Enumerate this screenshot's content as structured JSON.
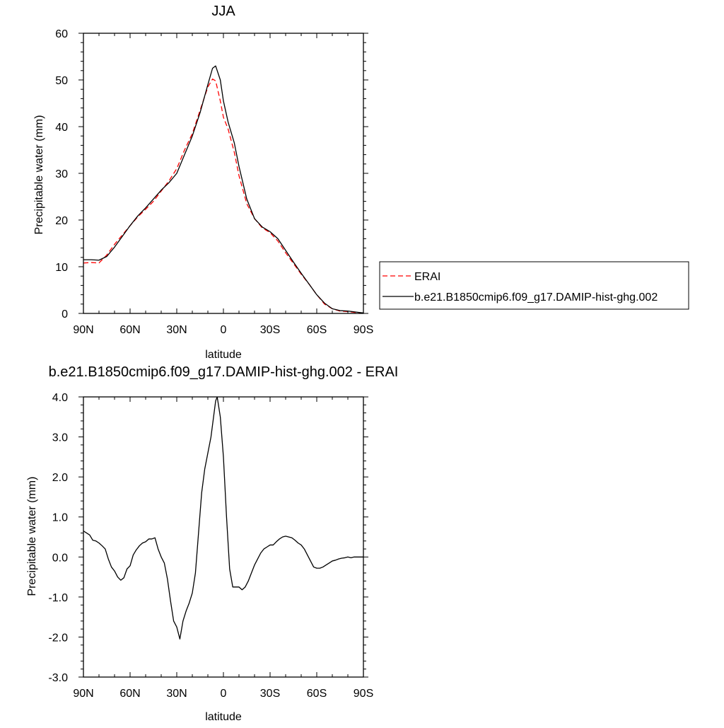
{
  "chart_data": [
    {
      "type": "line",
      "title": "JJA",
      "xlabel": "latitude",
      "ylabel": "Precipitable water (mm)",
      "xlim": [
        90,
        -90
      ],
      "ylim": [
        0,
        60
      ],
      "x_ticks": [
        {
          "value": 90,
          "label": "90N"
        },
        {
          "value": 60,
          "label": "60N"
        },
        {
          "value": 30,
          "label": "30N"
        },
        {
          "value": 0,
          "label": "0"
        },
        {
          "value": -30,
          "label": "30S"
        },
        {
          "value": -60,
          "label": "60S"
        },
        {
          "value": -90,
          "label": "90S"
        }
      ],
      "y_ticks": [
        {
          "value": 0,
          "label": "0"
        },
        {
          "value": 10,
          "label": "10"
        },
        {
          "value": 20,
          "label": "20"
        },
        {
          "value": 30,
          "label": "30"
        },
        {
          "value": 40,
          "label": "40"
        },
        {
          "value": 50,
          "label": "50"
        },
        {
          "value": 60,
          "label": "60"
        }
      ],
      "legend_position": "right",
      "series": [
        {
          "name": "ERAI",
          "color": "#ff0000",
          "style": "dashed",
          "x": [
            90,
            85,
            80,
            75,
            70,
            65,
            60,
            55,
            50,
            45,
            40,
            35,
            30,
            25,
            20,
            15,
            10,
            7,
            5,
            2,
            0,
            -3,
            -7,
            -10,
            -15,
            -20,
            -25,
            -30,
            -35,
            -40,
            -45,
            -50,
            -55,
            -60,
            -65,
            -70,
            -75,
            -80,
            -85,
            -90
          ],
          "y": [
            10.8,
            10.9,
            10.8,
            12.5,
            14.8,
            16.8,
            18.8,
            20.7,
            22.3,
            24.0,
            26.2,
            28.4,
            31.0,
            35.0,
            38.5,
            43.5,
            48.5,
            50.2,
            49.8,
            45.5,
            42.0,
            39.5,
            34.5,
            29.5,
            23.5,
            20.3,
            18.3,
            17.3,
            15.5,
            13.0,
            10.7,
            8.4,
            6.3,
            4.0,
            2.0,
            1.0,
            0.5,
            0.4,
            0.2,
            0.1
          ]
        },
        {
          "name": "b.e21.B1850cmip6.f09_g17.DAMIP-hist-ghg.002",
          "color": "#000000",
          "style": "solid",
          "x": [
            90,
            85,
            80,
            75,
            70,
            65,
            60,
            55,
            50,
            45,
            40,
            35,
            30,
            25,
            20,
            15,
            10,
            7,
            5,
            2,
            0,
            -3,
            -7,
            -10,
            -15,
            -20,
            -25,
            -30,
            -35,
            -40,
            -45,
            -50,
            -55,
            -60,
            -65,
            -70,
            -75,
            -80,
            -85,
            -90
          ],
          "y": [
            11.5,
            11.5,
            11.4,
            12.2,
            14.2,
            16.5,
            18.8,
            20.9,
            22.6,
            24.5,
            26.4,
            28.0,
            30.0,
            34.0,
            38.0,
            43.0,
            49.0,
            52.5,
            53.0,
            50.0,
            45.5,
            41.0,
            36.5,
            31.5,
            24.5,
            20.3,
            18.5,
            17.5,
            16.0,
            13.5,
            11.0,
            8.6,
            6.3,
            4.0,
            2.2,
            1.0,
            0.6,
            0.5,
            0.3,
            0.1
          ]
        }
      ]
    },
    {
      "type": "line",
      "title": "b.e21.B1850cmip6.f09_g17.DAMIP-hist-ghg.002 - ERAI",
      "xlabel": "latitude",
      "ylabel": "Precipitable water (mm)",
      "xlim": [
        90,
        -90
      ],
      "ylim": [
        -3,
        4
      ],
      "x_ticks": [
        {
          "value": 90,
          "label": "90N"
        },
        {
          "value": 60,
          "label": "60N"
        },
        {
          "value": 30,
          "label": "30N"
        },
        {
          "value": 0,
          "label": "0"
        },
        {
          "value": -30,
          "label": "30S"
        },
        {
          "value": -60,
          "label": "60S"
        },
        {
          "value": -90,
          "label": "90S"
        }
      ],
      "y_ticks": [
        {
          "value": 4,
          "label": "4.0"
        },
        {
          "value": 3,
          "label": "3.0"
        },
        {
          "value": 2,
          "label": "2.0"
        },
        {
          "value": 1,
          "label": "1.0"
        },
        {
          "value": 0,
          "label": "0.0"
        },
        {
          "value": -1,
          "label": "-1.0"
        },
        {
          "value": -2,
          "label": "-2.0"
        },
        {
          "value": -3,
          "label": "-3.0"
        }
      ],
      "series": [
        {
          "color": "#000000",
          "style": "solid",
          "x": [
            90,
            88,
            86,
            84,
            82,
            80,
            78,
            76,
            74,
            72,
            70,
            68,
            66,
            64,
            62,
            60,
            58,
            56,
            54,
            52,
            50,
            48,
            46,
            44,
            42,
            40,
            38,
            36,
            34,
            32,
            30,
            28,
            26,
            24,
            22,
            20,
            18,
            16,
            14,
            12,
            10,
            8,
            6,
            5,
            4,
            2,
            0,
            -2,
            -4,
            -6,
            -8,
            -10,
            -12,
            -14,
            -16,
            -18,
            -20,
            -22,
            -24,
            -26,
            -28,
            -30,
            -32,
            -34,
            -36,
            -38,
            -40,
            -42,
            -44,
            -46,
            -48,
            -50,
            -52,
            -54,
            -56,
            -58,
            -60,
            -62,
            -64,
            -66,
            -68,
            -70,
            -72,
            -74,
            -76,
            -78,
            -80,
            -82,
            -84,
            -86,
            -88,
            -90
          ],
          "y": [
            0.65,
            0.6,
            0.55,
            0.42,
            0.4,
            0.35,
            0.28,
            0.2,
            -0.05,
            -0.25,
            -0.35,
            -0.5,
            -0.58,
            -0.52,
            -0.3,
            -0.22,
            0.05,
            0.18,
            0.28,
            0.35,
            0.38,
            0.45,
            0.45,
            0.48,
            0.2,
            0.0,
            -0.15,
            -0.55,
            -1.1,
            -1.6,
            -1.75,
            -2.05,
            -1.6,
            -1.35,
            -1.15,
            -0.9,
            -0.4,
            0.6,
            1.6,
            2.2,
            2.6,
            3.0,
            3.6,
            3.9,
            4.0,
            3.5,
            2.5,
            1.0,
            -0.3,
            -0.75,
            -0.75,
            -0.75,
            -0.82,
            -0.75,
            -0.6,
            -0.4,
            -0.2,
            -0.05,
            0.1,
            0.2,
            0.25,
            0.3,
            0.3,
            0.38,
            0.45,
            0.5,
            0.52,
            0.5,
            0.48,
            0.42,
            0.35,
            0.3,
            0.2,
            0.05,
            -0.1,
            -0.25,
            -0.28,
            -0.28,
            -0.25,
            -0.2,
            -0.15,
            -0.1,
            -0.08,
            -0.05,
            -0.03,
            -0.02,
            0.0,
            -0.02,
            0.0,
            0.0,
            0.0,
            0.0
          ]
        }
      ]
    }
  ]
}
